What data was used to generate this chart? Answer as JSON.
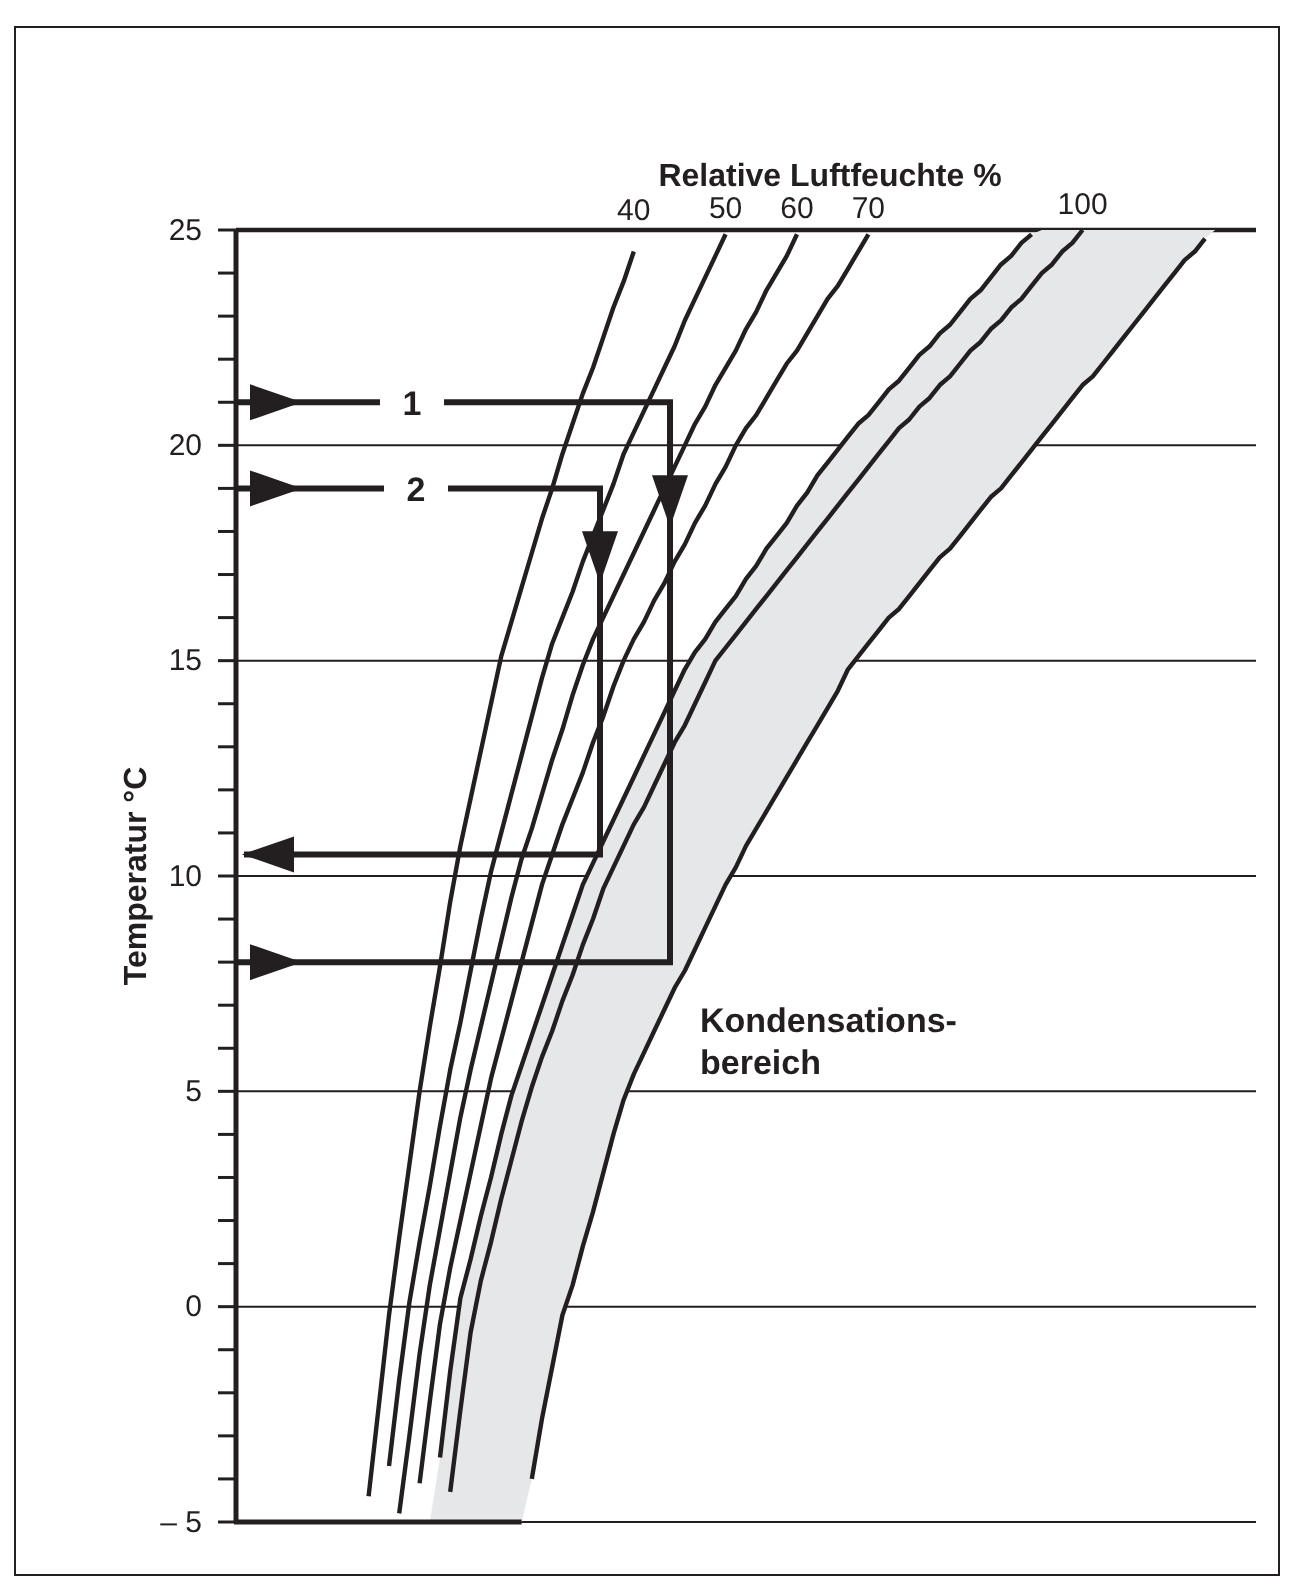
{
  "chart_data": {
    "type": "line",
    "legend_title": "Relative Luftfeuchte %",
    "ylabel": "Temperatur °C",
    "categories": [
      null,
      null,
      null,
      null,
      null,
      null,
      null,
      null,
      null,
      null,
      null,
      null,
      null,
      null,
      null,
      null,
      null,
      null,
      null,
      null,
      null,
      null,
      null,
      null,
      null,
      null,
      null,
      null,
      null,
      null,
      null,
      null,
      null,
      null,
      null,
      null,
      null,
      null,
      null,
      null,
      null,
      null,
      null,
      null,
      null,
      null,
      null,
      null,
      null,
      null,
      null,
      null,
      null,
      null,
      null,
      null,
      null,
      null,
      null,
      null,
      null,
      null,
      null,
      null,
      null,
      null,
      null,
      null,
      null,
      null,
      null,
      null,
      null,
      null,
      null,
      null,
      null,
      null,
      null,
      null,
      null,
      null,
      null,
      null,
      null,
      null,
      null,
      null,
      null,
      null,
      null,
      null,
      null,
      null,
      null,
      null,
      null,
      null,
      null,
      null,
      null
    ],
    "ylim": [
      -5,
      25
    ],
    "yticks": [
      {
        "value": -5,
        "label": "– 5"
      },
      {
        "value": -4,
        "label": null
      },
      {
        "value": -3,
        "label": null
      },
      {
        "value": -2,
        "label": null
      },
      {
        "value": -1,
        "label": null
      },
      0,
      {
        "value": 1,
        "label": null
      },
      {
        "value": 2,
        "label": null
      },
      {
        "value": 3,
        "label": null
      },
      {
        "value": 4,
        "label": null
      },
      5,
      {
        "value": 6,
        "label": null
      },
      {
        "value": 7,
        "label": null
      },
      {
        "value": 8,
        "label": null
      },
      {
        "value": 9,
        "label": null
      },
      10,
      {
        "value": 11,
        "label": null
      },
      {
        "value": 12,
        "label": null
      },
      {
        "value": 13,
        "label": null
      },
      {
        "value": 14,
        "label": null
      },
      15,
      {
        "value": 16,
        "label": null
      },
      {
        "value": 17,
        "label": null
      },
      {
        "value": 18,
        "label": null
      },
      {
        "value": 19,
        "label": null
      },
      20,
      {
        "value": 21,
        "label": null
      },
      {
        "value": 22,
        "label": null
      },
      {
        "value": 23,
        "label": null
      },
      {
        "value": 24,
        "label": null
      },
      25
    ],
    "tick_labels": "y",
    "grid": "y",
    "legend": false,
    "annotations": [
      {
        "text": "1",
        "y": 21
      },
      {
        "text": "2",
        "y": 19
      },
      "Kondensations-\nbereich"
    ],
    "series": [
      {
        "name": "40",
        "color": "#231f20",
        "values": [
          null,
          null,
          null,
          null,
          null,
          null,
          null,
          null,
          null,
          null,
          null,
          null,
          null,
          -4.4,
          -2.3,
          -0.2,
          1.6,
          3.3,
          5,
          6.5,
          7.9,
          9.4,
          10.7,
          11.8,
          12.9,
          14.0,
          15.1,
          15.9,
          16.7,
          17.5,
          18.3,
          19.0,
          19.8,
          20.5,
          21.2,
          21.8,
          22.5,
          23.2,
          23.8,
          24.5,
          null,
          null,
          null,
          null,
          null,
          null,
          null,
          null,
          null,
          null,
          null,
          null,
          null,
          null,
          null,
          null,
          null,
          null,
          null,
          null,
          null,
          null,
          null,
          null,
          null,
          null,
          null,
          null,
          null,
          null,
          null,
          null,
          null,
          null,
          null,
          null,
          null,
          null,
          null,
          null,
          null,
          null,
          null,
          null,
          null,
          null,
          null,
          null,
          null,
          null,
          null,
          null,
          null,
          null,
          null,
          null,
          null,
          null,
          null,
          null,
          null
        ]
      },
      {
        "name": "50",
        "color": "#231f20",
        "values": [
          null,
          null,
          null,
          null,
          null,
          null,
          null,
          null,
          null,
          null,
          null,
          null,
          null,
          null,
          null,
          -3.7,
          -1.7,
          0.1,
          1.5,
          2.8,
          4.2,
          5.5,
          6.6,
          7.8,
          9.0,
          10.1,
          11.0,
          11.9,
          12.8,
          13.7,
          14.6,
          15.4,
          16.0,
          16.6,
          17.3,
          17.9,
          18.5,
          19.1,
          19.8,
          20.3,
          20.8,
          21.3,
          21.8,
          22.3,
          22.9,
          23.4,
          23.9,
          24.4,
          24.9,
          null,
          null,
          null,
          null,
          null,
          null,
          null,
          null,
          null,
          null,
          null,
          null,
          null,
          null,
          null,
          null,
          null,
          null,
          null,
          null,
          null,
          null,
          null,
          null,
          null,
          null,
          null,
          null,
          null,
          null,
          null,
          null,
          null,
          null,
          null,
          null,
          null,
          null,
          null,
          null,
          null,
          null,
          null,
          null,
          null,
          null,
          null,
          null,
          null,
          null,
          null,
          null
        ]
      },
      {
        "name": "60",
        "color": "#231f20",
        "values": [
          null,
          null,
          null,
          null,
          null,
          null,
          null,
          null,
          null,
          null,
          null,
          null,
          null,
          null,
          null,
          null,
          -4.8,
          -3.0,
          -1.1,
          0.5,
          1.8,
          3.1,
          4.4,
          5.5,
          6.5,
          7.5,
          8.5,
          9.5,
          10.4,
          11.1,
          11.9,
          12.7,
          13.4,
          14.2,
          14.9,
          15.5,
          16.0,
          16.5,
          17.0,
          17.5,
          18.0,
          18.5,
          19.0,
          19.5,
          20.0,
          20.5,
          20.9,
          21.4,
          21.8,
          22.2,
          22.7,
          23.1,
          23.6,
          24.0,
          24.4,
          24.9,
          null,
          null,
          null,
          null,
          null,
          null,
          null,
          null,
          null,
          null,
          null,
          null,
          null,
          null,
          null,
          null,
          null,
          null,
          null,
          null,
          null,
          null,
          null,
          null,
          null,
          null,
          null,
          null,
          null,
          null,
          null,
          null,
          null,
          null,
          null,
          null,
          null,
          null,
          null,
          null,
          null,
          null,
          null,
          null,
          null
        ]
      },
      {
        "name": "70",
        "color": "#231f20",
        "values": [
          null,
          null,
          null,
          null,
          null,
          null,
          null,
          null,
          null,
          null,
          null,
          null,
          null,
          null,
          null,
          null,
          null,
          null,
          -4.1,
          -2.2,
          -0.4,
          0.9,
          2.0,
          3.1,
          4.2,
          5.3,
          6.2,
          7.1,
          8.0,
          8.9,
          9.8,
          10.5,
          11.2,
          11.8,
          12.4,
          13.1,
          13.7,
          14.4,
          15.0,
          15.5,
          15.9,
          16.4,
          16.8,
          17.3,
          17.7,
          18.2,
          18.6,
          19.1,
          19.5,
          20.0,
          20.4,
          20.7,
          21.1,
          21.5,
          21.9,
          22.2,
          22.6,
          23.0,
          23.4,
          23.7,
          24.1,
          24.5,
          24.9,
          null,
          null,
          null,
          null,
          null,
          null,
          null,
          null,
          null,
          null,
          null,
          null,
          null,
          null,
          null,
          null,
          null,
          null,
          null,
          null,
          null,
          null,
          null,
          null,
          null,
          null,
          null,
          null,
          null,
          null,
          null,
          null,
          null,
          null,
          null,
          null,
          null,
          null
        ]
      },
      {
        "color": "#231f20",
        "values": [
          null,
          null,
          null,
          null,
          null,
          null,
          null,
          null,
          null,
          null,
          null,
          null,
          null,
          null,
          null,
          null,
          null,
          null,
          null,
          null,
          -3.5,
          -1.5,
          0.2,
          1.1,
          2.1,
          3.0,
          4.0,
          4.9,
          5.6,
          6.3,
          7.0,
          7.7,
          8.4,
          9.1,
          9.8,
          10.3,
          10.8,
          11.3,
          11.8,
          12.3,
          12.8,
          13.3,
          13.8,
          14.3,
          14.8,
          15.2,
          15.5,
          15.9,
          16.2,
          16.5,
          16.9,
          17.2,
          17.6,
          17.9,
          18.2,
          18.6,
          18.9,
          19.3,
          19.6,
          19.9,
          20.2,
          20.5,
          20.7,
          21.0,
          21.3,
          21.5,
          21.8,
          22.1,
          22.3,
          22.6,
          22.8,
          23.1,
          23.4,
          23.6,
          23.9,
          24.2,
          24.4,
          24.7,
          24.9,
          null,
          null,
          null,
          null,
          null,
          null,
          null,
          null,
          null,
          null,
          null,
          null,
          null,
          null,
          null,
          null,
          null,
          null,
          null,
          null,
          null,
          null
        ]
      },
      {
        "name": "100",
        "color": "#231f20",
        "values": [
          null,
          null,
          null,
          null,
          null,
          null,
          null,
          null,
          null,
          null,
          null,
          null,
          null,
          null,
          null,
          null,
          null,
          null,
          null,
          null,
          null,
          -4.3,
          -2.4,
          -0.6,
          0.6,
          1.5,
          2.5,
          3.4,
          4.3,
          5.1,
          5.8,
          6.4,
          7.1,
          7.7,
          8.4,
          9.0,
          9.7,
          10.2,
          10.7,
          11.2,
          11.6,
          12.1,
          12.6,
          13.1,
          13.5,
          14.0,
          14.5,
          15.0,
          15.3,
          15.6,
          15.9,
          16.2,
          16.5,
          16.8,
          17.1,
          17.4,
          17.7,
          18.0,
          18.3,
          18.6,
          18.9,
          19.2,
          19.5,
          19.8,
          20.1,
          20.4,
          20.6,
          20.9,
          21.1,
          21.4,
          21.6,
          21.9,
          22.2,
          22.4,
          22.7,
          22.9,
          23.2,
          23.4,
          23.7,
          24.0,
          24.2,
          24.5,
          24.7,
          25.0,
          null,
          null,
          null,
          null,
          null,
          null,
          null,
          null,
          null,
          null,
          null,
          null,
          null,
          null,
          null,
          null,
          null
        ],
        "upper": [
          -5,
          -5,
          -5,
          -5,
          -5,
          -5,
          -5,
          -5,
          -5,
          -5,
          -5,
          -5,
          -5,
          -5,
          -5,
          -5,
          -5,
          -5,
          -5,
          -5,
          -3.5,
          -1.5,
          0.2,
          1.1,
          2.1,
          3.0,
          4.0,
          4.9,
          5.6,
          6.3,
          7.0,
          7.7,
          8.4,
          9.1,
          9.8,
          10.3,
          10.8,
          11.3,
          11.8,
          12.3,
          12.8,
          13.3,
          13.8,
          14.3,
          14.8,
          15.2,
          15.5,
          15.9,
          16.2,
          16.5,
          16.9,
          17.2,
          17.6,
          17.9,
          18.2,
          18.6,
          18.9,
          19.3,
          19.6,
          19.9,
          20.2,
          20.5,
          20.7,
          21.0,
          21.3,
          21.5,
          21.8,
          22.1,
          22.3,
          22.6,
          22.8,
          23.1,
          23.4,
          23.6,
          23.9,
          24.2,
          24.4,
          24.7,
          24.9,
          25,
          25,
          25,
          25,
          25,
          25,
          25,
          25,
          25,
          25,
          25,
          25,
          25,
          25,
          25,
          25,
          25,
          25,
          25,
          25,
          25,
          25
        ],
        "lower": [
          -5,
          -5,
          -5,
          -5,
          -5,
          -5,
          -5,
          -5,
          -5,
          -5,
          -5,
          -5,
          -5,
          -5,
          -5,
          -5,
          -5,
          -5,
          -5,
          -5,
          -5,
          -5,
          -5,
          -5,
          -5,
          -5,
          -5,
          -5,
          -5,
          -4.0,
          -2.6,
          -1.4,
          -0.2,
          0.5,
          1.4,
          2.2,
          3.1,
          4.0,
          4.8,
          5.4,
          5.9,
          6.4,
          6.9,
          7.4,
          7.8,
          8.3,
          8.8,
          9.3,
          9.8,
          10.2,
          10.7,
          11.1,
          11.5,
          11.9,
          12.3,
          12.7,
          13.1,
          13.5,
          13.9,
          14.3,
          14.8,
          15.1,
          15.4,
          15.7,
          16.0,
          16.2,
          16.5,
          16.8,
          17.1,
          17.4,
          17.6,
          17.9,
          18.2,
          18.5,
          18.8,
          19.0,
          19.3,
          19.6,
          19.9,
          20.2,
          20.5,
          20.8,
          21.1,
          21.4,
          21.6,
          21.9,
          22.2,
          22.5,
          22.8,
          23.1,
          23.4,
          23.7,
          24.0,
          24.3,
          24.5,
          24.8,
          25,
          25,
          25,
          25,
          25
        ]
      },
      {
        "color": "#231f20",
        "values": [
          null,
          null,
          null,
          null,
          null,
          null,
          null,
          null,
          null,
          null,
          null,
          null,
          null,
          null,
          null,
          null,
          null,
          null,
          null,
          null,
          null,
          null,
          null,
          null,
          null,
          null,
          null,
          null,
          null,
          -4.0,
          -2.6,
          -1.4,
          -0.2,
          0.5,
          1.4,
          2.2,
          3.1,
          4.0,
          4.8,
          5.4,
          5.9,
          6.4,
          6.9,
          7.4,
          7.8,
          8.3,
          8.8,
          9.3,
          9.8,
          10.2,
          10.7,
          11.1,
          11.5,
          11.9,
          12.3,
          12.7,
          13.1,
          13.5,
          13.9,
          14.3,
          14.8,
          15.1,
          15.4,
          15.7,
          16.0,
          16.2,
          16.5,
          16.8,
          17.1,
          17.4,
          17.6,
          17.9,
          18.2,
          18.5,
          18.8,
          19.0,
          19.3,
          19.6,
          19.9,
          20.2,
          20.5,
          20.8,
          21.1,
          21.4,
          21.6,
          21.9,
          22.2,
          22.5,
          22.8,
          23.1,
          23.4,
          23.7,
          24.0,
          24.3,
          24.5,
          24.8,
          null,
          null,
          null,
          null,
          null
        ]
      }
    ]
  }
}
